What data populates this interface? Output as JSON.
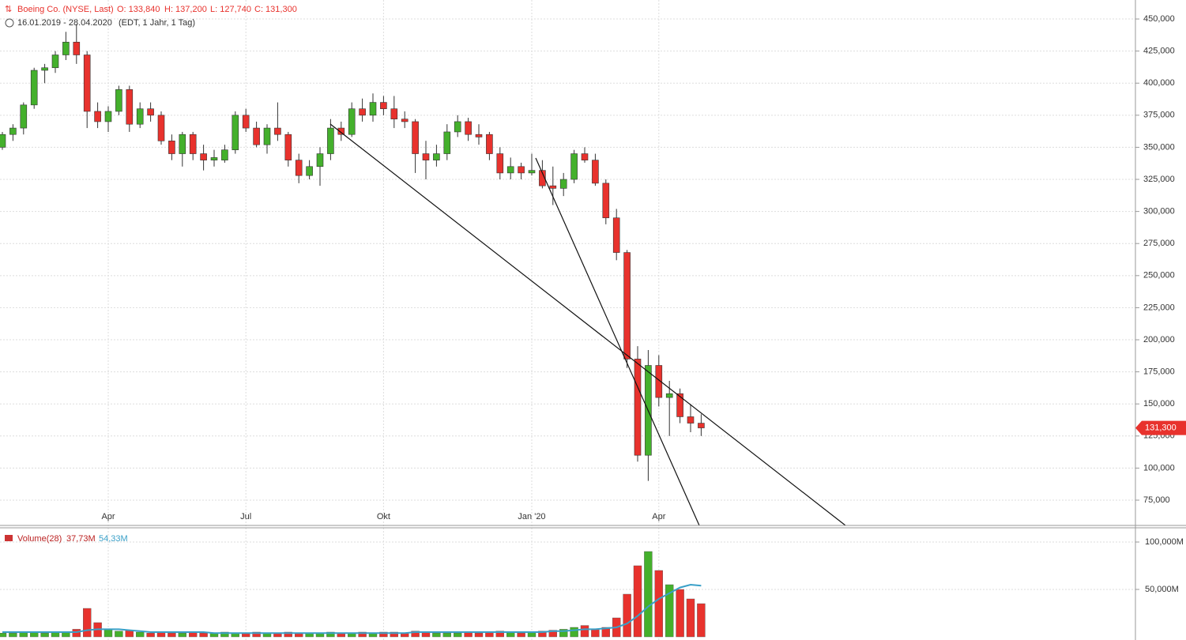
{
  "chart_data": [
    {
      "type": "candlestick",
      "title": "Boeing Co. (NYSE, Last)",
      "quote": [
        "O: 133,840",
        "H: 137,200",
        "L: 127,740",
        "C: 131,300"
      ],
      "subtitle": "16.01.2019 - 28.04.2020",
      "subtitle_note": "(EDT, 1 Jahr, 1 Tag)",
      "last_label": "131,300",
      "categories": [
        null,
        null,
        null,
        null,
        null,
        null,
        null,
        null,
        null,
        null,
        "Apr",
        null,
        null,
        null,
        null,
        null,
        null,
        null,
        null,
        null,
        null,
        null,
        null,
        "Jul",
        null,
        null,
        null,
        null,
        null,
        null,
        null,
        null,
        null,
        null,
        null,
        null,
        "Okt",
        null,
        null,
        null,
        null,
        null,
        null,
        null,
        null,
        null,
        null,
        null,
        null,
        null,
        "Jan '20",
        null,
        null,
        null,
        null,
        null,
        null,
        null,
        null,
        null,
        null,
        null,
        "Apr",
        null,
        null,
        null,
        null
      ],
      "open": [
        350,
        360,
        365,
        383,
        410,
        412,
        422,
        432,
        422,
        378,
        370,
        378,
        395,
        368,
        380,
        375,
        355,
        345,
        360,
        345,
        340,
        340,
        348,
        375,
        365,
        352,
        365,
        360,
        340,
        328,
        335,
        345,
        365,
        360,
        380,
        375,
        385,
        380,
        372,
        370,
        345,
        340,
        345,
        362,
        370,
        360,
        360,
        345,
        330,
        335,
        330,
        332,
        320,
        318,
        325,
        345,
        340,
        322,
        295,
        268,
        185,
        110,
        180,
        155,
        158,
        140,
        135
      ],
      "high": [
        362,
        368,
        385,
        412,
        415,
        425,
        440,
        446,
        425,
        385,
        382,
        398,
        398,
        385,
        385,
        378,
        360,
        362,
        362,
        352,
        348,
        352,
        378,
        380,
        370,
        368,
        385,
        362,
        345,
        340,
        350,
        372,
        370,
        385,
        388,
        392,
        390,
        390,
        378,
        372,
        355,
        352,
        368,
        375,
        373,
        368,
        362,
        350,
        342,
        338,
        345,
        340,
        335,
        330,
        348,
        350,
        345,
        325,
        302,
        270,
        195,
        192,
        188,
        168,
        162,
        150,
        142
      ],
      "low": [
        348,
        355,
        360,
        380,
        400,
        408,
        418,
        415,
        365,
        365,
        362,
        375,
        362,
        365,
        370,
        352,
        340,
        335,
        340,
        332,
        335,
        338,
        345,
        362,
        350,
        345,
        355,
        335,
        322,
        325,
        320,
        340,
        355,
        358,
        370,
        370,
        375,
        365,
        365,
        330,
        325,
        335,
        340,
        358,
        355,
        352,
        340,
        325,
        325,
        325,
        328,
        318,
        305,
        312,
        322,
        338,
        320,
        290,
        262,
        178,
        105,
        90,
        148,
        125,
        135,
        128,
        125
      ],
      "close": [
        360,
        365,
        383,
        410,
        412,
        422,
        432,
        422,
        378,
        370,
        378,
        395,
        368,
        380,
        375,
        355,
        345,
        360,
        345,
        340,
        342,
        348,
        375,
        365,
        352,
        365,
        360,
        340,
        328,
        335,
        345,
        365,
        360,
        380,
        375,
        385,
        380,
        372,
        370,
        345,
        340,
        345,
        362,
        370,
        360,
        358,
        345,
        330,
        335,
        330,
        332,
        320,
        318,
        325,
        345,
        340,
        322,
        295,
        268,
        185,
        110,
        180,
        155,
        158,
        140,
        135,
        131.3
      ],
      "ylim": [
        55.3,
        464.8
      ],
      "yticks": [
        {
          "value": 75,
          "label": "75,000"
        },
        {
          "value": 100,
          "label": "100,000"
        },
        {
          "value": 125,
          "label": "125,000"
        },
        {
          "value": 150,
          "label": "150,000"
        },
        {
          "value": 175,
          "label": "175,000"
        },
        {
          "value": 200,
          "label": "200,000"
        },
        {
          "value": 225,
          "label": "225,000"
        },
        {
          "value": 250,
          "label": "250,000"
        },
        {
          "value": 275,
          "label": "275,000"
        },
        {
          "value": 300,
          "label": "300,000"
        },
        {
          "value": 325,
          "label": "325,000"
        },
        {
          "value": 350,
          "label": "350,000"
        },
        {
          "value": 375,
          "label": "375,000"
        },
        {
          "value": 400,
          "label": "400,000"
        },
        {
          "value": 425,
          "label": "425,000"
        },
        {
          "value": 450,
          "label": "450,000"
        }
      ],
      "up_color": "#44b02c",
      "down_color": "#e8322d",
      "grid": true
    },
    {
      "type": "bar",
      "name": "Volume(28)",
      "value_label": "37,73M",
      "ma_label": "54,33M",
      "values": [
        4,
        4,
        5,
        5,
        4,
        5,
        5,
        8,
        30,
        15,
        8,
        6,
        7,
        5,
        4,
        5,
        4,
        4,
        5,
        4,
        4,
        5,
        4,
        4,
        5,
        4,
        4,
        5,
        4,
        4,
        4,
        5,
        4,
        4,
        5,
        4,
        5,
        5,
        4,
        6,
        5,
        4,
        4,
        4,
        5,
        4,
        5,
        6,
        5,
        4,
        5,
        6,
        7,
        8,
        10,
        12,
        8,
        10,
        20,
        45,
        75,
        90,
        70,
        55,
        50,
        40,
        35
      ],
      "ma_values": [
        5,
        5,
        5,
        5,
        5,
        5,
        5,
        5,
        7,
        8,
        8,
        8,
        7,
        6,
        5,
        5,
        5,
        5,
        5,
        5,
        4,
        4,
        4,
        4,
        4,
        4,
        4,
        4,
        4,
        4,
        4,
        4,
        4,
        4,
        4,
        4,
        4,
        4,
        4,
        5,
        5,
        5,
        5,
        5,
        5,
        5,
        5,
        5,
        5,
        5,
        5,
        5,
        6,
        6,
        7,
        8,
        8,
        9,
        10,
        14,
        22,
        32,
        40,
        46,
        52,
        55,
        54
      ],
      "ma_color": "#3aa0c8",
      "ylim": [
        0,
        115
      ],
      "yticks": [
        {
          "value": 50,
          "label": "50,000M"
        },
        {
          "value": 100,
          "label": "100,000M"
        }
      ]
    }
  ]
}
